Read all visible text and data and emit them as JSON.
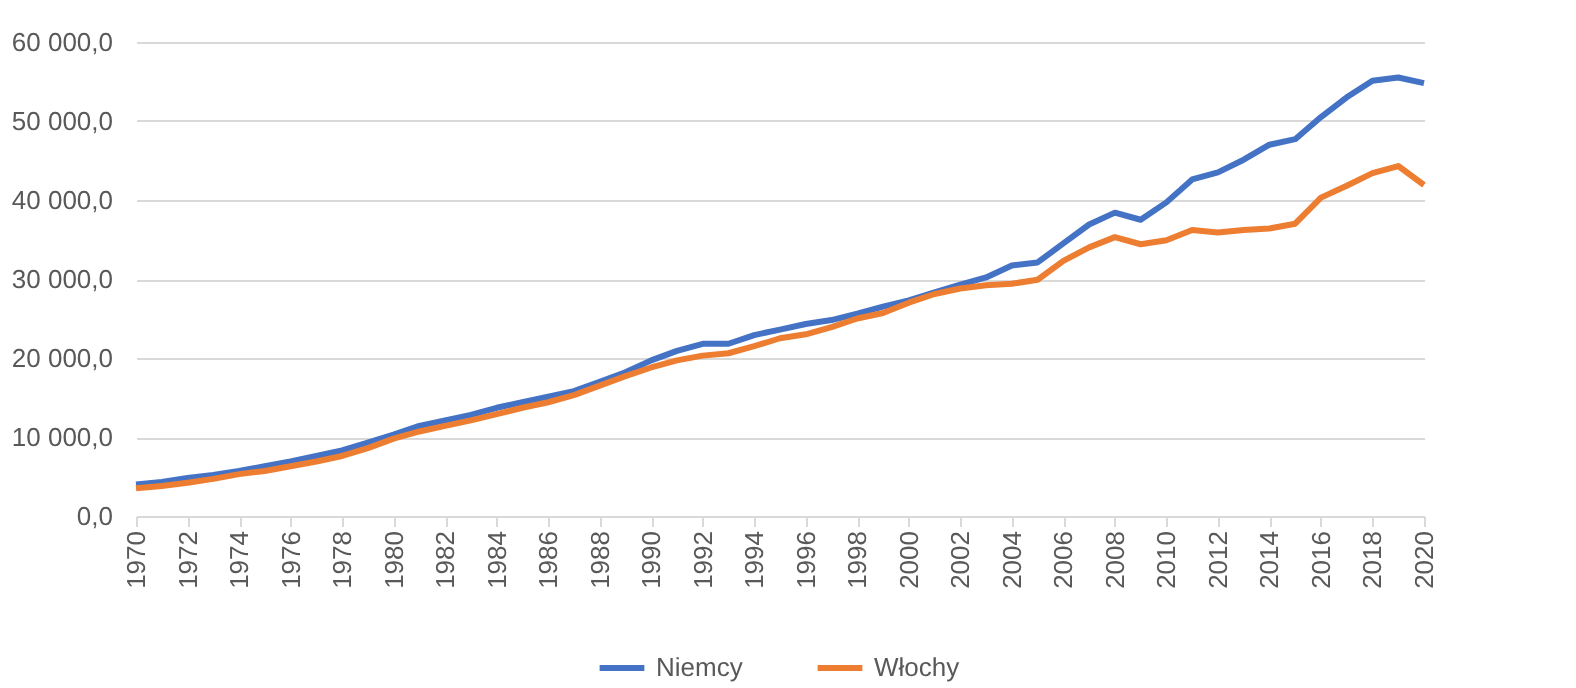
{
  "chart_data": {
    "type": "line",
    "x": [
      1970,
      1971,
      1972,
      1973,
      1974,
      1975,
      1976,
      1977,
      1978,
      1979,
      1980,
      1981,
      1982,
      1983,
      1984,
      1985,
      1986,
      1987,
      1988,
      1989,
      1990,
      1991,
      1992,
      1993,
      1994,
      1995,
      1996,
      1997,
      1998,
      1999,
      2000,
      2001,
      2002,
      2003,
      2004,
      2005,
      2006,
      2007,
      2008,
      2009,
      2010,
      2011,
      2012,
      2013,
      2014,
      2015,
      2016,
      2017,
      2018,
      2019,
      2020
    ],
    "series": [
      {
        "name": "Niemcy",
        "color": "#4472c4",
        "values": [
          4000,
          4300,
          4800,
          5200,
          5700,
          6300,
          6900,
          7600,
          8300,
          9300,
          10300,
          11400,
          12100,
          12800,
          13700,
          14400,
          15100,
          15800,
          17000,
          18200,
          19700,
          20900,
          21800,
          21800,
          22900,
          23600,
          24300,
          24800,
          25600,
          26500,
          27300,
          28300,
          29300,
          30200,
          31700,
          32100,
          34500,
          36900,
          38400,
          37500,
          39700,
          42600,
          43500,
          45100,
          47000,
          47700,
          50500,
          53000,
          55100,
          55500,
          54800
        ]
      },
      {
        "name": "Włochy",
        "color": "#ed7d31",
        "values": [
          3500,
          3800,
          4200,
          4700,
          5300,
          5700,
          6300,
          6900,
          7600,
          8600,
          9800,
          10700,
          11400,
          12100,
          12900,
          13700,
          14400,
          15300,
          16500,
          17700,
          18800,
          19700,
          20300,
          20600,
          21500,
          22500,
          23000,
          23900,
          25000,
          25700,
          27000,
          28100,
          28800,
          29200,
          29400,
          29900,
          32300,
          34000,
          35300,
          34400,
          34900,
          36200,
          35900,
          36200,
          36400,
          37000,
          40300,
          41800,
          43400,
          44300,
          41900
        ]
      }
    ],
    "xlim": [
      1970,
      2020
    ],
    "xticks": [
      1970,
      1972,
      1974,
      1976,
      1978,
      1980,
      1982,
      1984,
      1986,
      1988,
      1990,
      1992,
      1994,
      1996,
      1998,
      2000,
      2002,
      2004,
      2006,
      2008,
      2010,
      2012,
      2014,
      2016,
      2018,
      2020
    ],
    "ylim": [
      0,
      60000
    ],
    "yticks": [
      {
        "value": 0,
        "label": "0,0"
      },
      {
        "value": 10000,
        "label": "10 000,0"
      },
      {
        "value": 20000,
        "label": "20 000,0"
      },
      {
        "value": 30000,
        "label": "30 000,0"
      },
      {
        "value": 40000,
        "label": "40 000,0"
      },
      {
        "value": 50000,
        "label": "50 000,0"
      },
      {
        "value": 60000,
        "label": "60 000,0"
      }
    ],
    "grid": "y",
    "legend": "bottom",
    "marker": "none",
    "line_style": "solid"
  }
}
